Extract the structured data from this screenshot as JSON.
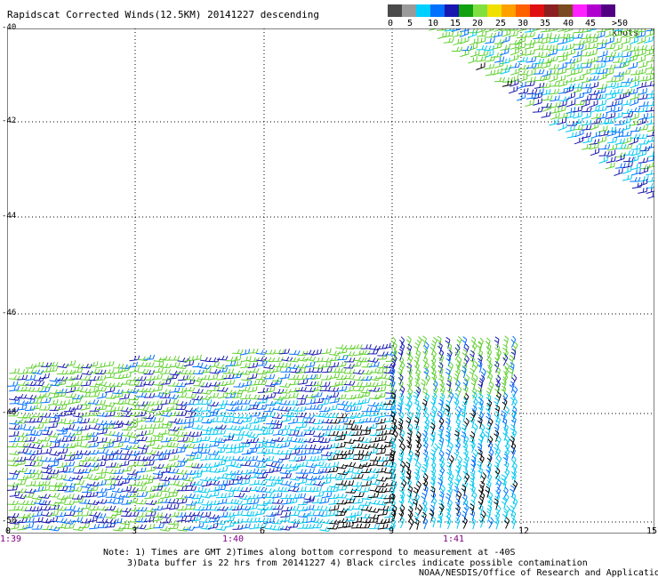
{
  "title": "Rapidscat Corrected Winds(12.5KM) 20141227 descending",
  "legend": {
    "colors": [
      "#4a4a4a",
      "#9a9a9a",
      "#00d0ff",
      "#0070ff",
      "#1818b0",
      "#10a010",
      "#80e040",
      "#f0e000",
      "#ffa000",
      "#ff6000",
      "#e01010",
      "#8b2020",
      "#7a4a20",
      "#ff20ff",
      "#b000d0",
      "#500080"
    ],
    "labels": [
      "0",
      "5",
      "10",
      "15",
      "20",
      "25",
      "30",
      "35",
      "40",
      "45",
      ">50 knots"
    ]
  },
  "lat_labels": [
    "-40",
    "-42",
    "-44",
    "-46",
    "-48",
    "-50"
  ],
  "lon_labels": [
    "0",
    "3",
    "6",
    "9",
    "12",
    "15"
  ],
  "time_labels": [
    "1:39",
    "1:40",
    "1:41"
  ],
  "notes": {
    "line1": "Note: 1) Times are GMT 2)Times along bottom correspond to measurement at -40S",
    "line2": "3)Data buffer is 22 hrs from 20141227 4) Black circles indicate possible contamination",
    "line3": "NOAA/NESDIS/Office of Research and Applications"
  }
}
